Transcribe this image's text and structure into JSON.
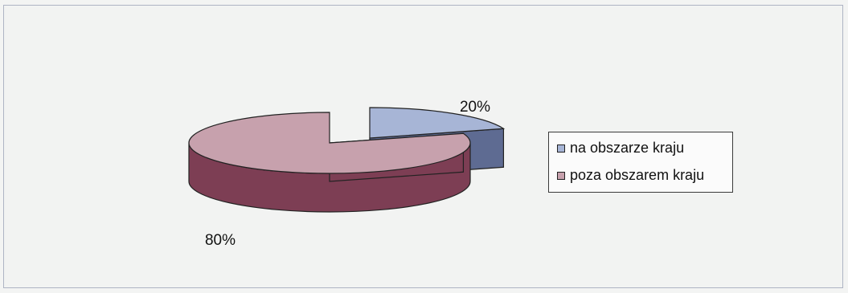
{
  "chart_data": {
    "type": "pie",
    "style": "3d-exploded",
    "title": "",
    "slices": [
      {
        "label": "na obszarze kraju",
        "value": 20,
        "display": "20%",
        "color": "#a7b5d6",
        "side_color": "#5e6b92"
      },
      {
        "label": "poza obszarem kraju",
        "value": 80,
        "display": "80%",
        "color": "#c7a1ad",
        "side_color": "#7d3e54"
      }
    ],
    "legend_placement": "right"
  }
}
